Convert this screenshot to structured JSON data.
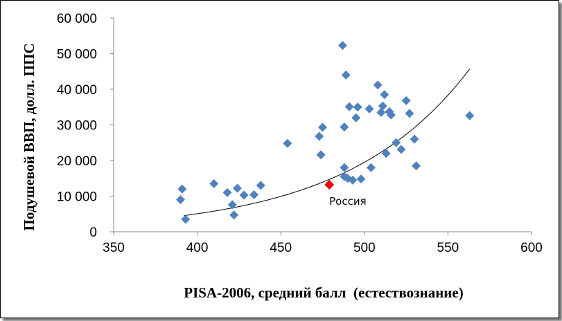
{
  "chart_data": {
    "type": "scatter",
    "title": "",
    "xlabel": "PISA-2006, средний балл  (естествознание)",
    "ylabel": "Подушевой ВВП, долл. ППС",
    "xlim": [
      350,
      600
    ],
    "ylim": [
      0,
      60000
    ],
    "x_ticks": [
      350,
      400,
      450,
      500,
      550,
      600
    ],
    "y_ticks": [
      0,
      10000,
      20000,
      30000,
      40000,
      50000,
      60000
    ],
    "x_tick_labels": [
      "350",
      "400",
      "450",
      "500",
      "550",
      "600"
    ],
    "y_tick_labels": [
      "0",
      "10 000",
      "20 000",
      "30 000",
      "40 000",
      "50 000",
      "60 000"
    ],
    "grid": false,
    "legend": "none",
    "colors": {
      "points": "#4f81bd",
      "highlight": "#ff0000",
      "trend": "#000000"
    },
    "points": [
      {
        "x": 390,
        "y": 9000
      },
      {
        "x": 391,
        "y": 12000
      },
      {
        "x": 393,
        "y": 3500
      },
      {
        "x": 410,
        "y": 13500
      },
      {
        "x": 418,
        "y": 11000
      },
      {
        "x": 421,
        "y": 7600
      },
      {
        "x": 422,
        "y": 4700
      },
      {
        "x": 424,
        "y": 12200
      },
      {
        "x": 428,
        "y": 10300
      },
      {
        "x": 434,
        "y": 10400
      },
      {
        "x": 438,
        "y": 13000
      },
      {
        "x": 454,
        "y": 24800
      },
      {
        "x": 473,
        "y": 26800
      },
      {
        "x": 474,
        "y": 21600
      },
      {
        "x": 475,
        "y": 29300
      },
      {
        "x": 487,
        "y": 52300
      },
      {
        "x": 488,
        "y": 29400
      },
      {
        "x": 488,
        "y": 18000
      },
      {
        "x": 488,
        "y": 15500
      },
      {
        "x": 489,
        "y": 44000
      },
      {
        "x": 490,
        "y": 15000
      },
      {
        "x": 491,
        "y": 35100
      },
      {
        "x": 493,
        "y": 14500
      },
      {
        "x": 495,
        "y": 32000
      },
      {
        "x": 496,
        "y": 35000
      },
      {
        "x": 498,
        "y": 14800
      },
      {
        "x": 503,
        "y": 34500
      },
      {
        "x": 504,
        "y": 18000
      },
      {
        "x": 508,
        "y": 41200
      },
      {
        "x": 510,
        "y": 33500
      },
      {
        "x": 511,
        "y": 35300
      },
      {
        "x": 512,
        "y": 38500
      },
      {
        "x": 513,
        "y": 22000
      },
      {
        "x": 515,
        "y": 33700
      },
      {
        "x": 516,
        "y": 32800
      },
      {
        "x": 519,
        "y": 25000
      },
      {
        "x": 522,
        "y": 23100
      },
      {
        "x": 525,
        "y": 36800
      },
      {
        "x": 527,
        "y": 33200
      },
      {
        "x": 530,
        "y": 26000
      },
      {
        "x": 531,
        "y": 18500
      },
      {
        "x": 563,
        "y": 32600
      }
    ],
    "highlight": {
      "label": "Россия",
      "x": 479,
      "y": 13200
    },
    "trendline": {
      "type": "exponential",
      "x_range": [
        392,
        563
      ],
      "a": 22.6,
      "b": 0.01352
    }
  }
}
